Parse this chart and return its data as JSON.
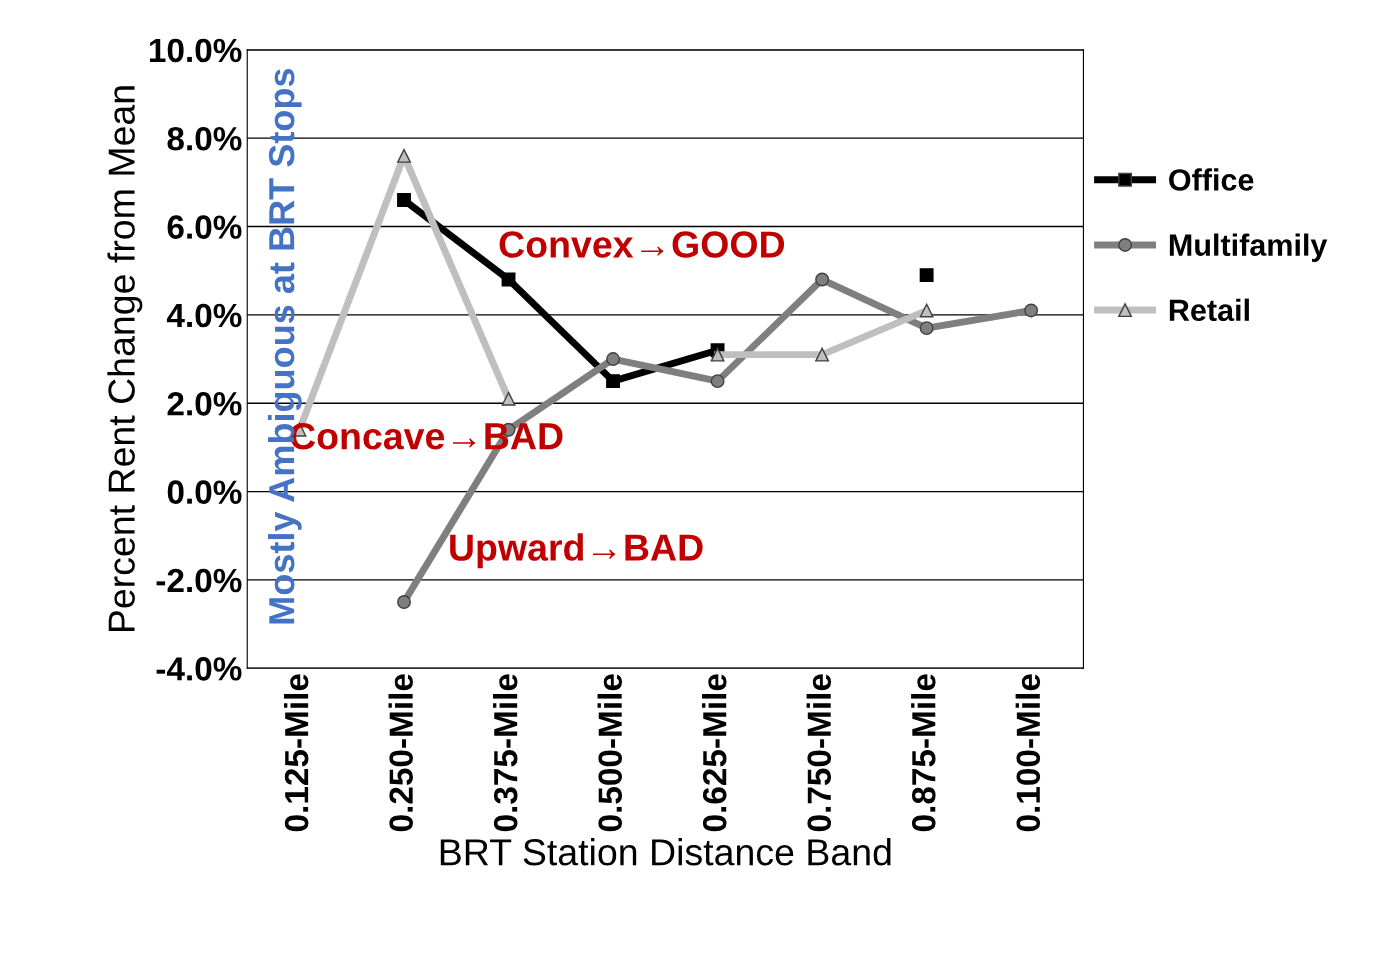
{
  "chart_data": {
    "type": "line",
    "xlabel": "BRT Station Distance Band",
    "ylabel": "Percent Rent Change from Mean",
    "categories": [
      "0.125-Mile",
      "0.250-Mile",
      "0.375-Mile",
      "0.500-Mile",
      "0.625-Mile",
      "0.750-Mile",
      "0.875-Mile",
      "0.100-Mile"
    ],
    "series": [
      {
        "name": "Office",
        "color": "#000000",
        "marker": "square",
        "values": [
          null,
          6.6,
          4.8,
          2.5,
          3.2,
          null,
          4.9,
          null
        ]
      },
      {
        "name": "Multifamily",
        "color": "#7f7f7f",
        "marker": "circle",
        "values": [
          null,
          -2.5,
          1.4,
          3.0,
          2.5,
          4.8,
          3.7,
          4.1
        ]
      },
      {
        "name": "Retail",
        "color": "#bfbfbf",
        "marker": "triangle",
        "values": [
          1.4,
          7.6,
          2.1,
          null,
          3.1,
          3.1,
          4.1,
          null
        ]
      }
    ],
    "ylim": [
      -4,
      10
    ],
    "yticks": [
      {
        "value": -4,
        "label": "-4.0%"
      },
      {
        "value": -2,
        "label": "-2.0%"
      },
      {
        "value": 0,
        "label": "0.0%"
      },
      {
        "value": 2,
        "label": "2.0%"
      },
      {
        "value": 4,
        "label": "4.0%"
      },
      {
        "value": 6,
        "label": "6.0%"
      },
      {
        "value": 8,
        "label": "8.0%"
      },
      {
        "value": 10,
        "label": "10.0%"
      }
    ],
    "grid": "y",
    "legend": "right",
    "line_style": "solid",
    "annotations": [
      "Convex→GOOD",
      "Concave→BAD",
      "Upward→BAD",
      "Mostly Ambiguous at BRT Stops"
    ]
  }
}
